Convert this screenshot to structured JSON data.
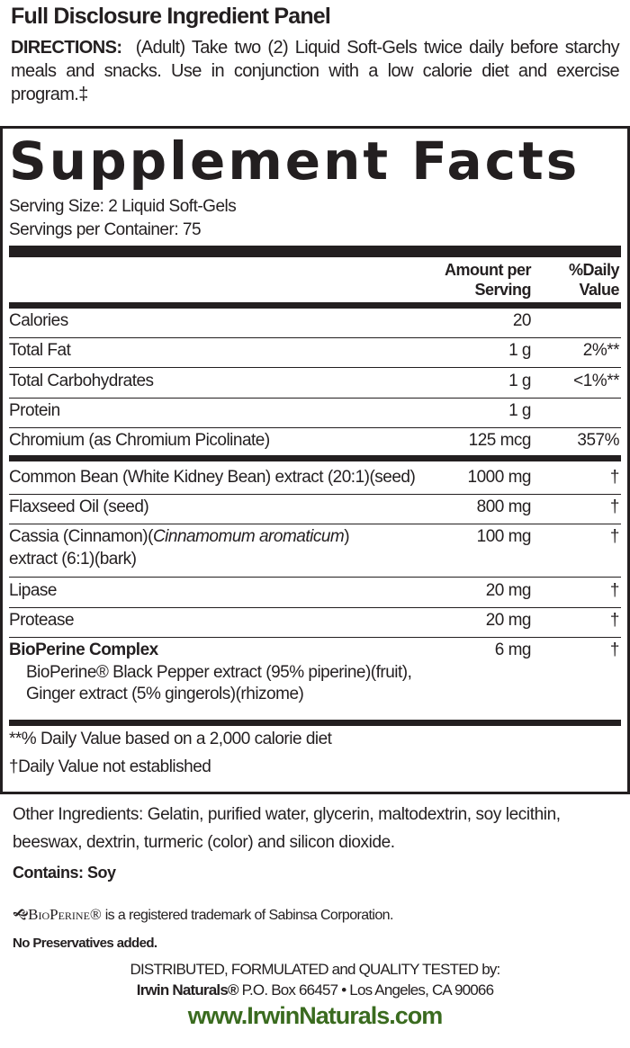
{
  "header": {
    "title": "Full Disclosure Ingredient Panel",
    "directions_label": "DIRECTIONS:",
    "directions_text": "(Adult) Take two (2) Liquid Soft-Gels twice daily before starchy meals and snacks. Use in conjunction with a low calorie diet and exercise program.‡"
  },
  "facts": {
    "title": "Supplement Facts",
    "serving_size": "Serving Size:  2 Liquid Soft-Gels",
    "servings_per_container": "Servings per Container:  75",
    "col_amount": [
      "Amount per",
      "Serving"
    ],
    "col_dv": [
      "%Daily",
      "Value"
    ],
    "rows": [
      {
        "name": "Calories",
        "amount": "20",
        "dv": ""
      },
      {
        "name": "Total Fat",
        "amount": "1 g",
        "dv": "2%**"
      },
      {
        "name": "Total Carbohydrates",
        "amount": "1 g",
        "dv": "<1%**"
      },
      {
        "name": "Protein",
        "amount": "1 g",
        "dv": ""
      },
      {
        "name": "Chromium (as Chromium Picolinate)",
        "amount": "125 mcg",
        "dv": "357%"
      }
    ],
    "ingredients": [
      {
        "name": "Common Bean (White Kidney Bean) extract (20:1)(seed)",
        "amount": "1000 mg",
        "dv": "†"
      },
      {
        "name": "Flaxseed Oil (seed)",
        "amount": "800 mg",
        "dv": "†"
      },
      {
        "name_pre": "Cassia (Cinnamon)(",
        "name_italic": "Cinnamomum aromaticum",
        "name_post": ")",
        "name_line2": "extract (6:1)(bark)",
        "amount": "100 mg",
        "dv": "†"
      },
      {
        "name": "Lipase",
        "amount": "20 mg",
        "dv": "†"
      },
      {
        "name": "Protease",
        "amount": "20 mg",
        "dv": "†"
      },
      {
        "name": "BioPerine Complex",
        "amount": "6 mg",
        "dv": "†",
        "sub1": "BioPerine® Black Pepper extract (95% piperine)(fruit),",
        "sub2": "Ginger extract (5% gingerols)(rhizome)"
      }
    ],
    "footnote1": "**% Daily Value based on a 2,000 calorie diet",
    "footnote2": "†Daily Value not established"
  },
  "other_ingredients": "Other Ingredients: Gelatin, purified water, glycerin, maltodextrin, soy lecithin, beeswax, dextrin, turmeric (color) and silicon dioxide.",
  "contains": "Contains:  Soy",
  "trademark": {
    "logo": "BioPerine®",
    "text": "is a registered trademark of Sabinsa Corporation."
  },
  "no_preservatives": "No Preservatives added.",
  "distributor": {
    "line1": "DISTRIBUTED, FORMULATED and QUALITY TESTED by:",
    "brand": "Irwin Naturals®",
    "address": "P.O. Box 66457 • Los Angeles, CA 90066",
    "website": "www.IrwinNaturals.com"
  },
  "colors": {
    "text": "#231f20",
    "website": "#3a6b1f"
  }
}
